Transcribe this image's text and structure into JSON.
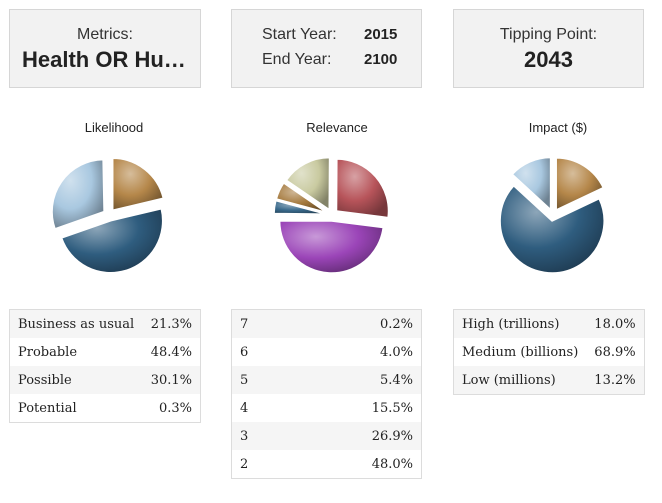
{
  "metrics_card": {
    "label": "Metrics:",
    "value": "Health OR Human Services"
  },
  "years_card": {
    "start_label": "Start Year:",
    "start_value": "2015",
    "end_label": "End Year:",
    "end_value": "2100"
  },
  "tipping_card": {
    "label": "Tipping Point:",
    "value": "2043"
  },
  "charts": {
    "likelihood": {
      "title": "Likelihood",
      "rows": [
        {
          "label": "Business as usual",
          "value": "21.3%"
        },
        {
          "label": "Probable",
          "value": "48.4%"
        },
        {
          "label": "Possible",
          "value": "30.1%"
        },
        {
          "label": "Potential",
          "value": "0.3%"
        }
      ]
    },
    "relevance": {
      "title": "Relevance",
      "rows": [
        {
          "label": "7",
          "value": "0.2%"
        },
        {
          "label": "6",
          "value": "4.0%"
        },
        {
          "label": "5",
          "value": "5.4%"
        },
        {
          "label": "4",
          "value": "15.5%"
        },
        {
          "label": "3",
          "value": "26.9%"
        },
        {
          "label": "2",
          "value": "48.0%"
        }
      ]
    },
    "impact": {
      "title": "Impact ($)",
      "rows": [
        {
          "label": "High (trillions)",
          "value": "18.0%"
        },
        {
          "label": "Medium (billions)",
          "value": "68.9%"
        },
        {
          "label": "Low (millions)",
          "value": "13.2%"
        }
      ]
    }
  },
  "chart_data": [
    {
      "type": "pie",
      "title": "Likelihood",
      "categories": [
        "Business as usual",
        "Probable",
        "Possible",
        "Potential"
      ],
      "values": [
        21.3,
        48.4,
        30.1,
        0.3
      ],
      "colors": [
        "#b5874a",
        "#2f5d7f",
        "#a9c8e0",
        "#6a8aa6"
      ]
    },
    {
      "type": "pie",
      "title": "Relevance",
      "categories": [
        "7",
        "6",
        "5",
        "4",
        "3",
        "2"
      ],
      "values": [
        0.2,
        4.0,
        5.4,
        15.5,
        26.9,
        48.0
      ],
      "colors": [
        "#8aa8c0",
        "#3a6a8c",
        "#a57a3e",
        "#c9caa0",
        "#b7545a",
        "#9b45b8"
      ]
    },
    {
      "type": "pie",
      "title": "Impact ($)",
      "categories": [
        "High (trillions)",
        "Medium (billions)",
        "Low (millions)"
      ],
      "values": [
        18.0,
        68.9,
        13.2
      ],
      "colors": [
        "#b5874a",
        "#2f5d7f",
        "#a9c8e0"
      ]
    }
  ]
}
